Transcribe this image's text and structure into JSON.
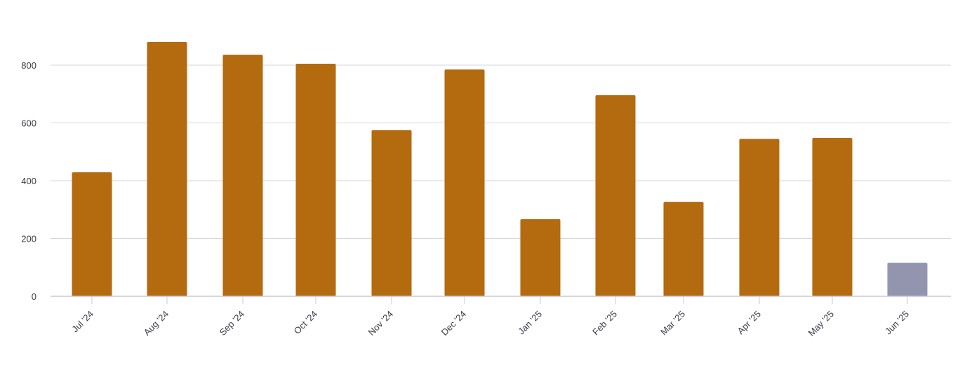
{
  "chart_data": {
    "type": "bar",
    "title": "",
    "xlabel": "",
    "ylabel": "",
    "ylim": [
      0,
      900
    ],
    "yticks": [
      0,
      200,
      400,
      600,
      800
    ],
    "grid": true,
    "categories": [
      "Jul '24",
      "Aug '24",
      "Sep '24",
      "Oct '24",
      "Nov '24",
      "Dec '24",
      "Jan '25",
      "Feb '25",
      "Mar '25",
      "Apr '25",
      "May '25",
      "Jun '25"
    ],
    "values": [
      429,
      880,
      836,
      805,
      575,
      785,
      267,
      696,
      327,
      545,
      548,
      116
    ],
    "partial": [
      false,
      false,
      false,
      false,
      false,
      false,
      false,
      false,
      false,
      false,
      false,
      true
    ],
    "colors": {
      "bar": "#b46a0e",
      "partial_bar": "#9394ae",
      "grid": "#d6d6e2",
      "axis": "#c9c9d9"
    }
  }
}
